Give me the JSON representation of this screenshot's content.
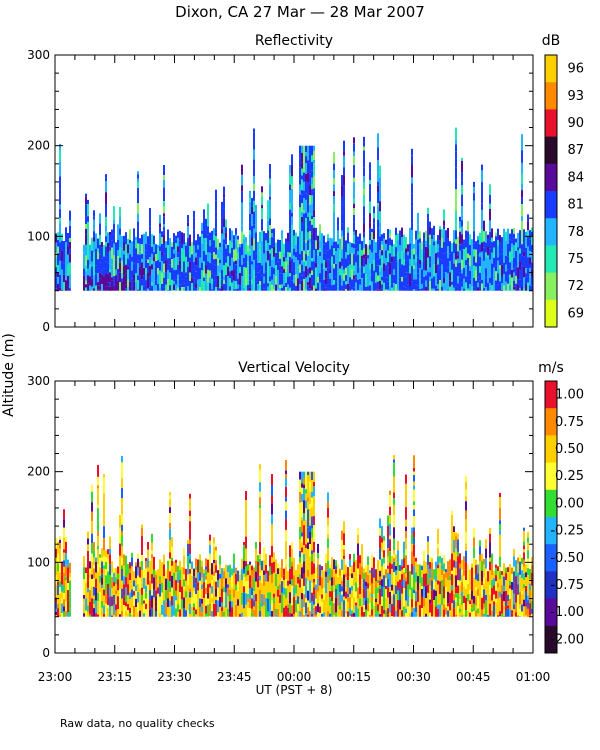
{
  "figure": {
    "title": "Dixon, CA 27 Mar — 28 Mar 2007",
    "shared_ylabel": "Altitude (m)",
    "xlabel": "UT (PST + 8)",
    "footnote": "Raw data, no quality checks"
  },
  "chart_data": [
    {
      "type": "heatmap",
      "title": "Reflectivity",
      "x_ticks": [
        "23:00",
        "23:15",
        "23:30",
        "23:45",
        "00:00",
        "00:15",
        "00:30",
        "00:45",
        "01:00"
      ],
      "x_range_minutes": [
        0,
        120
      ],
      "ylim": [
        0,
        300
      ],
      "y_ticks": [
        0,
        100,
        200,
        300
      ],
      "colorbar": {
        "unit": "dB",
        "labels": [
          "96",
          "93",
          "90",
          "87",
          "84",
          "81",
          "78",
          "75",
          "72",
          "69"
        ],
        "colors": [
          "#ffd000",
          "#ff8a00",
          "#e8102a",
          "#2a0a2a",
          "#5a0a9a",
          "#1a3cff",
          "#22b4ff",
          "#22e8b4",
          "#88f060",
          "#ddff1a"
        ]
      },
      "data_profile": {
        "base_altitude_m": 40,
        "typical_top_m": 100,
        "max_top_m": 220,
        "gaps_minutes": [
          [
            4,
            7
          ]
        ]
      }
    },
    {
      "type": "heatmap",
      "title": "Vertical Velocity",
      "x_ticks": [
        "23:00",
        "23:15",
        "23:30",
        "23:45",
        "00:00",
        "00:15",
        "00:30",
        "00:45",
        "01:00"
      ],
      "x_range_minutes": [
        0,
        120
      ],
      "ylim": [
        0,
        300
      ],
      "y_ticks": [
        0,
        100,
        200,
        300
      ],
      "colorbar": {
        "unit": "m/s",
        "labels": [
          "1.00",
          "0.75",
          "0.50",
          "0.25",
          "0.00",
          "-0.25",
          "-0.50",
          "-0.75",
          "-1.00",
          "-2.00"
        ],
        "colors": [
          "#e8102a",
          "#ff8a00",
          "#ffd000",
          "#ffff33",
          "#33dd33",
          "#22b4ff",
          "#1a60ff",
          "#2030c0",
          "#5a0a9a",
          "#2a0a2a"
        ]
      },
      "data_profile": {
        "base_altitude_m": 40,
        "typical_top_m": 100,
        "max_top_m": 220,
        "gaps_minutes": [
          [
            4,
            7
          ]
        ]
      }
    }
  ]
}
